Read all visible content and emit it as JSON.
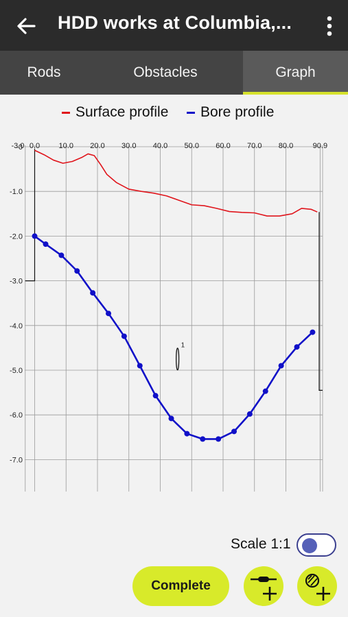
{
  "app_bar": {
    "title": "HDD works at Columbia,...",
    "back_icon": "arrow-back-icon",
    "more_icon": "more-vertical-icon"
  },
  "tabs": [
    {
      "label": "Rods",
      "selected": false
    },
    {
      "label": "Obstacles",
      "selected": false
    },
    {
      "label": "Graph",
      "selected": true
    }
  ],
  "colors": {
    "surface": "#e0141b",
    "bore": "#1010c8",
    "accent": "#d8ea2a",
    "appbar": "#2b2b2b"
  },
  "chart_data": {
    "type": "line",
    "legend": [
      "Surface profile",
      "Bore profile"
    ],
    "x_ticks": [
      "0.0",
      "10.0",
      "20.0",
      "30.0",
      "40.0",
      "50.0",
      "60.0",
      "70.0",
      "80.0",
      "90.9"
    ],
    "y_ticks": [
      "-0",
      "-1.0",
      "-2.0",
      "-3.0",
      "-4.0",
      "-5.0",
      "-6.0",
      "-7.0"
    ],
    "y_top_label": "-3.0",
    "xlim": [
      -3,
      91
    ],
    "ylim": [
      -7.7,
      0
    ],
    "grid": true,
    "series": [
      {
        "name": "Surface profile",
        "color": "#e0141b",
        "markers": false,
        "x": [
          0,
          3,
          6,
          9,
          12,
          15,
          17,
          19,
          21,
          23,
          26,
          30,
          34,
          38,
          42,
          46,
          50,
          54,
          58,
          62,
          66,
          70,
          74,
          78,
          82,
          85,
          88,
          90
        ],
        "y": [
          -0.08,
          -0.18,
          -0.3,
          -0.37,
          -0.33,
          -0.24,
          -0.16,
          -0.2,
          -0.4,
          -0.62,
          -0.8,
          -0.95,
          -1.0,
          -1.04,
          -1.1,
          -1.2,
          -1.3,
          -1.32,
          -1.38,
          -1.45,
          -1.47,
          -1.48,
          -1.55,
          -1.55,
          -1.5,
          -1.38,
          -1.4,
          -1.46
        ]
      },
      {
        "name": "Bore profile",
        "color": "#1010c8",
        "markers": true,
        "x": [
          0,
          3.5,
          8.5,
          13.5,
          18.5,
          23.5,
          28.5,
          33.5,
          38.5,
          43.5,
          48.5,
          53.5,
          58.5,
          63.5,
          68.5,
          73.5,
          78.5,
          83.5,
          88.5
        ],
        "y": [
          -2.0,
          -2.18,
          -2.43,
          -2.78,
          -3.27,
          -3.73,
          -4.24,
          -4.9,
          -5.57,
          -6.08,
          -6.42,
          -6.54,
          -6.54,
          -6.37,
          -5.98,
          -5.47,
          -4.9,
          -4.48,
          -4.15
        ]
      }
    ],
    "obstacle": {
      "label": "1",
      "x": 45.5,
      "y": -4.75
    }
  },
  "scale": {
    "label": "Scale 1:1",
    "enabled": false
  },
  "actions": {
    "complete_label": "Complete",
    "add_rod_icon": "add-rod-icon",
    "add_obstacle_icon": "add-obstacle-icon"
  }
}
